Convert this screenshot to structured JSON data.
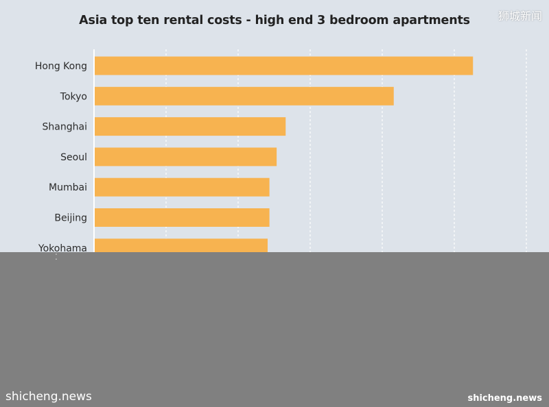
{
  "watermark": {
    "top_right": "狮城新闻",
    "bottom_left": "shicheng.news",
    "bottom_right": "shicheng.news"
  },
  "chart_data": {
    "type": "bar",
    "orientation": "horizontal",
    "title": "Asia top ten rental costs - high end 3 bedroom apartments",
    "xlabel": "",
    "ylabel": "",
    "categories": [
      "Hong Kong",
      "Tokyo",
      "Shanghai",
      "Seoul",
      "Mumbai",
      "Beijing",
      "Yokohama"
    ],
    "values": [
      10.5,
      8.3,
      5.3,
      5.05,
      4.85,
      4.85,
      4.8
    ],
    "xlim": [
      0,
      12
    ],
    "grid": true,
    "bar_color": "#f7b350",
    "grid_color": "#ffffff"
  }
}
